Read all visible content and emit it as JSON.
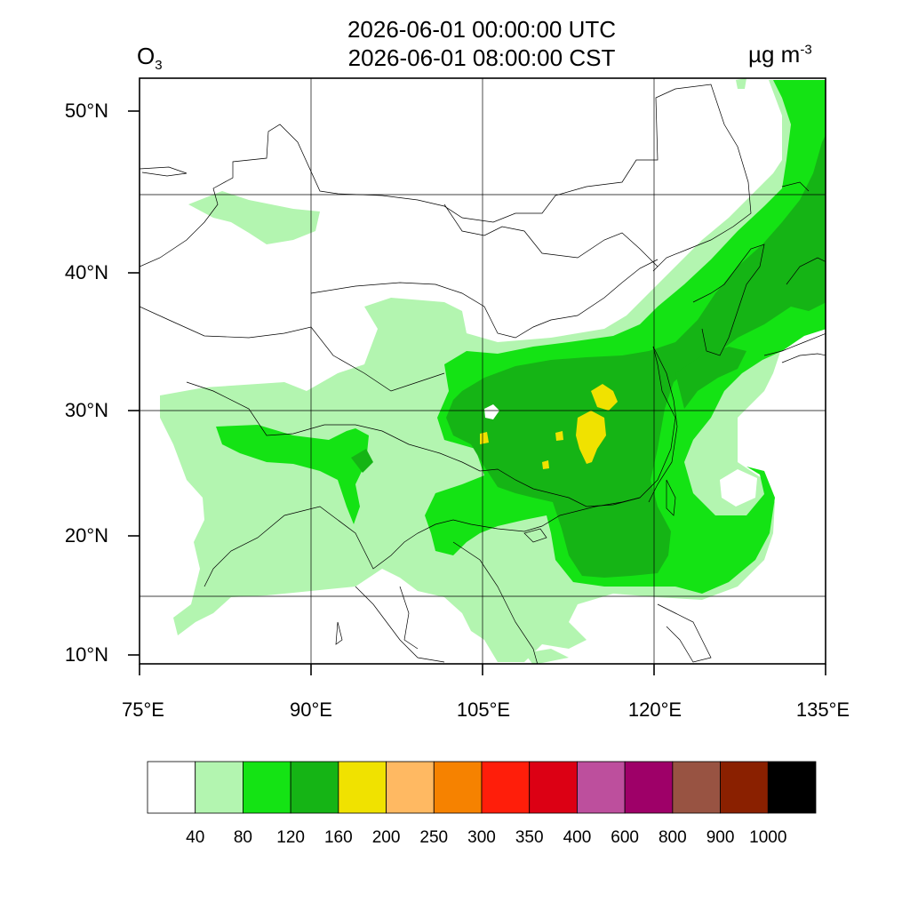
{
  "title": {
    "utc": "2026-06-01 00:00:00 UTC",
    "cst": "2026-06-01 08:00:00 CST"
  },
  "variable": {
    "base": "O",
    "sub": "3"
  },
  "units": {
    "base": "µg m",
    "sup": "-3"
  },
  "axes": {
    "lon_labels": [
      "75°E",
      "90°E",
      "105°E",
      "120°E",
      "135°E"
    ],
    "lat_labels": [
      "50°N",
      "40°N",
      "30°N",
      "20°N",
      "10°N"
    ]
  },
  "colorbar": {
    "bins": [
      {
        "color": "#ffffff"
      },
      {
        "color": "#b3f5b0"
      },
      {
        "color": "#14e314"
      },
      {
        "color": "#15b415"
      },
      {
        "color": "#f0e200"
      },
      {
        "color": "#ffb962"
      },
      {
        "color": "#f68200"
      },
      {
        "color": "#ff1e0a"
      },
      {
        "color": "#dc0014"
      },
      {
        "color": "#bd4f9d"
      },
      {
        "color": "#9e0068"
      },
      {
        "color": "#985342"
      },
      {
        "color": "#8a2000"
      },
      {
        "color": "#000000"
      }
    ],
    "labels": [
      "40",
      "80",
      "120",
      "160",
      "200",
      "250",
      "300",
      "350",
      "400",
      "600",
      "800",
      "900",
      "1000"
    ]
  }
}
